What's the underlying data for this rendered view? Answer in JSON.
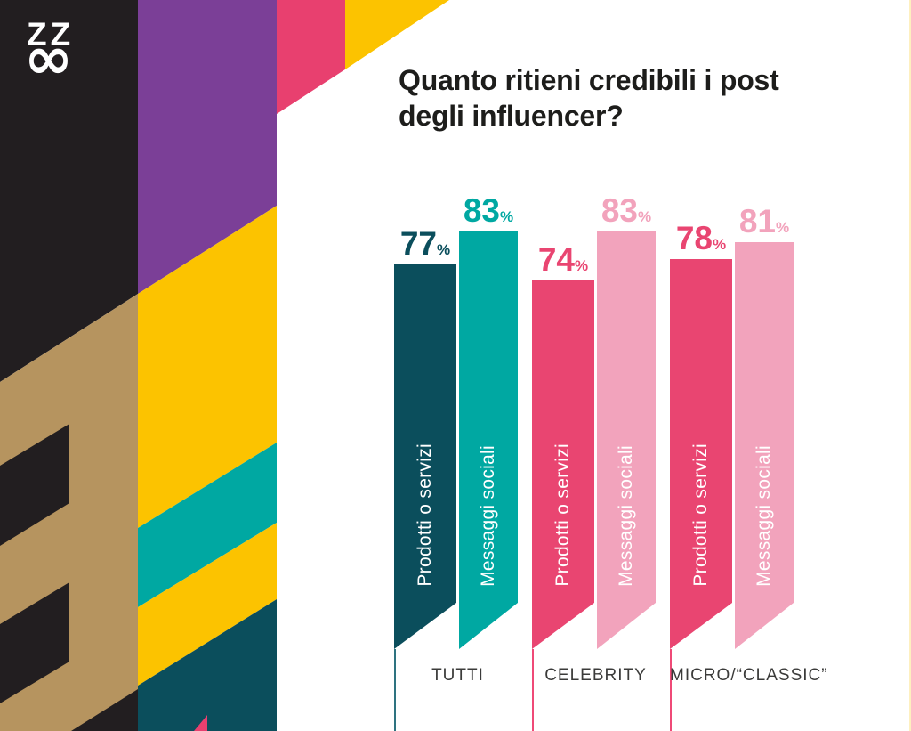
{
  "brand": {
    "logo_top": "ZZ",
    "logo_bottom": "∞"
  },
  "header": {
    "title_line1": "Quanto ritieni credibili i post",
    "title_line2": "degli influencer?"
  },
  "chart_data": {
    "type": "bar",
    "title": "Quanto ritieni credibili i post degli influencer?",
    "value_unit": "%",
    "ylim": [
      0,
      100
    ],
    "grid": false,
    "legend_position": "labels-inside-bars",
    "groups": [
      {
        "label": "TUTTI",
        "divider_color": "#2e7380",
        "bars": [
          {
            "name": "Prodotti o servizi",
            "value": 77,
            "color": "#0b4e5c"
          },
          {
            "name": "Messaggi sociali",
            "value": 83,
            "color": "#00a8a2"
          }
        ]
      },
      {
        "label": "CELEBRITY",
        "divider_color": "#ef4a77",
        "bars": [
          {
            "name": "Prodotti o servizi",
            "value": 74,
            "color": "#e94571"
          },
          {
            "name": "Messaggi sociali",
            "value": 83,
            "color": "#f2a3bc"
          }
        ]
      },
      {
        "label": "MICRO/“CLASSIC”",
        "divider_color": "#ef4a77",
        "bars": [
          {
            "name": "Prodotti o servizi",
            "value": 78,
            "color": "#e94571"
          },
          {
            "name": "Messaggi sociali",
            "value": 81,
            "color": "#f2a3bc"
          }
        ]
      }
    ]
  },
  "decor_colors": {
    "black": "#221e20",
    "purple": "#7b3f97",
    "magenta": "#e8406f",
    "yellow": "#fcc300",
    "tan": "#b6945f",
    "teal": "#00a8a2",
    "dark_teal": "#0b4e5c",
    "pink": "#e94571",
    "light_pink": "#f2a3bc"
  },
  "text_colors": {
    "title": "#1d1d1b",
    "category_label": "#3b3b3a",
    "bar_label": "#ffffff"
  }
}
